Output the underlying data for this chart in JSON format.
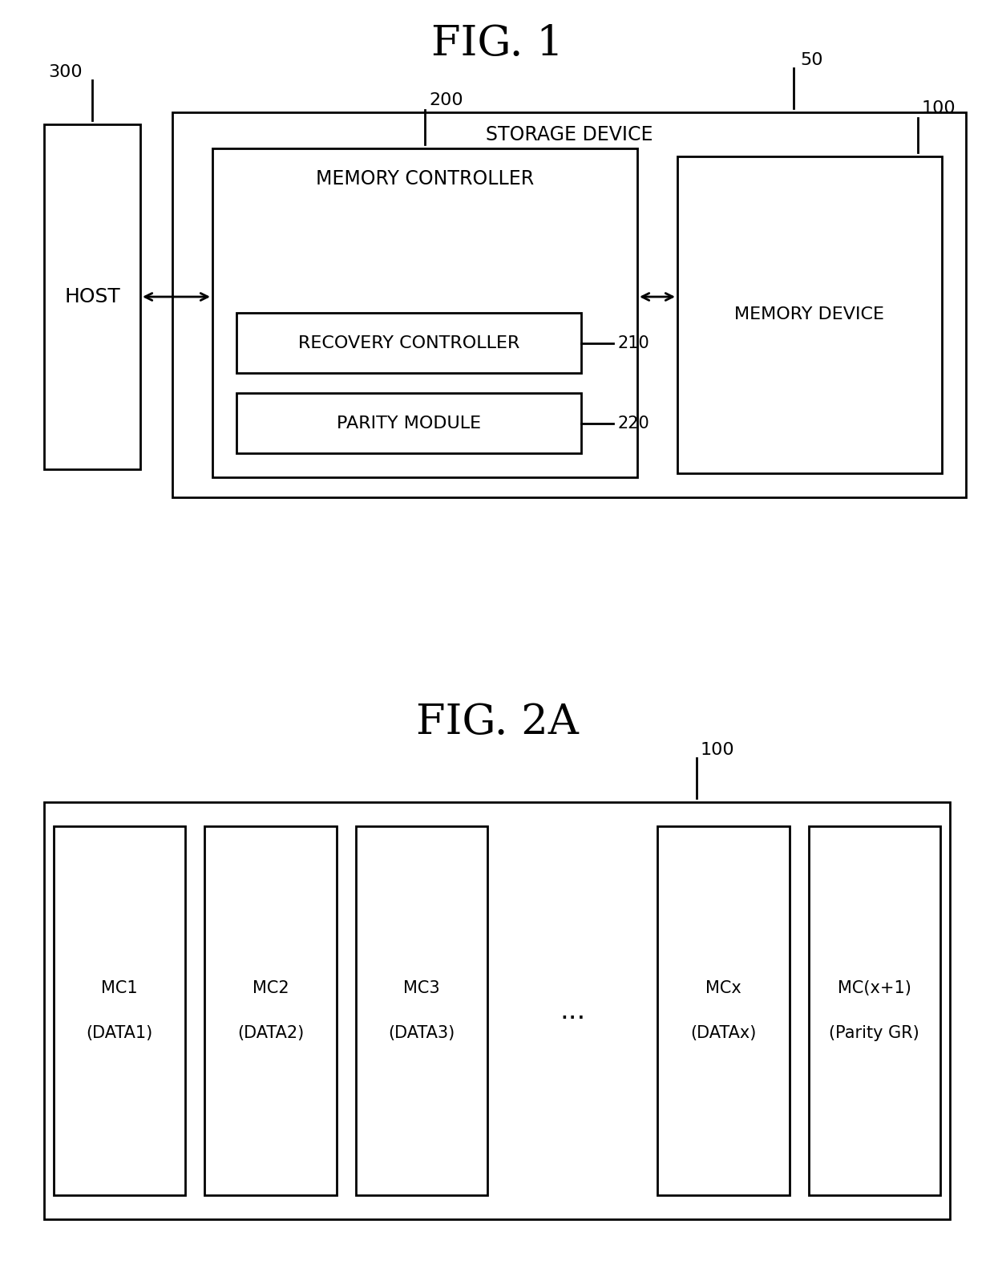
{
  "fig1_title": "FIG. 1",
  "fig2_title": "FIG. 2A",
  "bg_color": "#ffffff",
  "line_color": "#000000",
  "fig1": {
    "storage_device_label": "STORAGE DEVICE",
    "storage_device_ref": "50",
    "memory_controller_label": "MEMORY CONTROLLER",
    "memory_controller_ref": "200",
    "recovery_controller_label": "RECOVERY CONTROLLER",
    "recovery_controller_ref": "210",
    "parity_module_label": "PARITY MODULE",
    "parity_module_ref": "220",
    "host_label": "HOST",
    "host_ref": "300",
    "memory_device_label": "MEMORY DEVICE",
    "memory_device_ref": "100"
  },
  "fig2": {
    "memory_device_ref": "100",
    "cells": [
      {
        "line1": "MC1",
        "line2": "(DATA1)"
      },
      {
        "line1": "MC2",
        "line2": "(DATA2)"
      },
      {
        "line1": "MC3",
        "line2": "(DATA3)"
      },
      {
        "line1": "...",
        "line2": ""
      },
      {
        "line1": "MCx",
        "line2": "(DATAx)"
      },
      {
        "line1": "MC(x+1)",
        "line2": "(Parity GR)"
      }
    ]
  }
}
